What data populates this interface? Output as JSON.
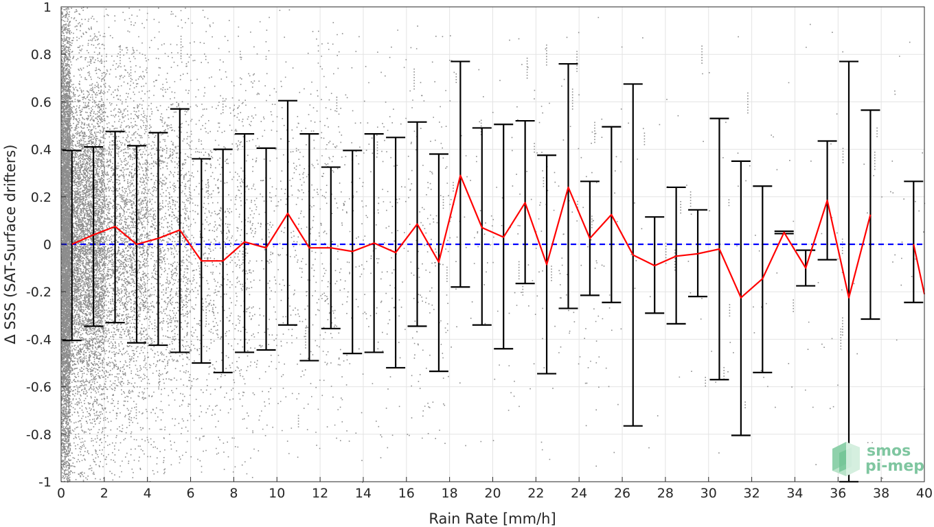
{
  "chart_data": {
    "type": "scatter",
    "xlabel": "Rain Rate [mm/h]",
    "ylabel": "Δ SSS (SAT-Surface drifters)",
    "xlim": [
      0,
      40
    ],
    "ylim": [
      -1,
      1
    ],
    "x_ticks": [
      "0",
      "2",
      "4",
      "6",
      "8",
      "10",
      "12",
      "14",
      "16",
      "18",
      "20",
      "22",
      "24",
      "26",
      "28",
      "30",
      "32",
      "34",
      "36",
      "38",
      "40"
    ],
    "y_ticks": [
      "-1",
      "-0.8",
      "-0.6",
      "-0.4",
      "-0.2",
      "0",
      "0.2",
      "0.4",
      "0.6",
      "0.8",
      "1"
    ],
    "grid": true,
    "scatter_color": "#8c8c8c",
    "mean_color": "#ff0000",
    "errorbar_color": "#000000",
    "zero_line_color": "#0000ff",
    "zero_line_style": "dashed",
    "mean_series": {
      "x": [
        0.5,
        1.5,
        2.5,
        3.5,
        4.5,
        5.5,
        6.5,
        7.5,
        8.5,
        9.5,
        10.5,
        11.5,
        12.5,
        13.5,
        14.5,
        15.5,
        16.5,
        17.5,
        18.5,
        19.5,
        20.5,
        21.5,
        22.5,
        23.5,
        24.5,
        25.5,
        26.5,
        27.5,
        28.5,
        29.5,
        30.5,
        31.5,
        32.5,
        33.5,
        34.5,
        35.5,
        36.5,
        37.5,
        38.5,
        39.5,
        40
      ],
      "y": [
        0.0,
        0.04,
        0.075,
        0.0,
        0.025,
        0.06,
        -0.07,
        -0.07,
        0.01,
        -0.015,
        0.13,
        -0.015,
        -0.015,
        -0.03,
        0.005,
        -0.035,
        0.085,
        -0.075,
        0.29,
        0.07,
        0.03,
        0.175,
        -0.085,
        0.24,
        0.025,
        0.125,
        -0.045,
        -0.09,
        -0.05,
        -0.04,
        -0.02,
        -0.225,
        -0.145,
        0.05,
        -0.1,
        0.185,
        -0.225,
        0.125,
        null,
        0.0,
        -0.21
      ]
    },
    "error_bars": [
      {
        "x": 0.5,
        "low": -0.405,
        "high": 0.395
      },
      {
        "x": 1.5,
        "low": -0.345,
        "high": 0.41
      },
      {
        "x": 2.5,
        "low": -0.33,
        "high": 0.475
      },
      {
        "x": 3.5,
        "low": -0.415,
        "high": 0.415
      },
      {
        "x": 4.5,
        "low": -0.425,
        "high": 0.47
      },
      {
        "x": 5.5,
        "low": -0.455,
        "high": 0.57
      },
      {
        "x": 6.5,
        "low": -0.5,
        "high": 0.36
      },
      {
        "x": 7.5,
        "low": -0.54,
        "high": 0.4
      },
      {
        "x": 8.5,
        "low": -0.455,
        "high": 0.465
      },
      {
        "x": 9.5,
        "low": -0.445,
        "high": 0.405
      },
      {
        "x": 10.5,
        "low": -0.34,
        "high": 0.605
      },
      {
        "x": 11.5,
        "low": -0.49,
        "high": 0.465
      },
      {
        "x": 12.5,
        "low": -0.355,
        "high": 0.325
      },
      {
        "x": 13.5,
        "low": -0.46,
        "high": 0.395
      },
      {
        "x": 14.5,
        "low": -0.455,
        "high": 0.465
      },
      {
        "x": 15.5,
        "low": -0.52,
        "high": 0.45
      },
      {
        "x": 16.5,
        "low": -0.345,
        "high": 0.515
      },
      {
        "x": 17.5,
        "low": -0.535,
        "high": 0.38
      },
      {
        "x": 18.5,
        "low": -0.18,
        "high": 0.77
      },
      {
        "x": 19.5,
        "low": -0.34,
        "high": 0.49
      },
      {
        "x": 20.5,
        "low": -0.44,
        "high": 0.505
      },
      {
        "x": 21.5,
        "low": -0.165,
        "high": 0.52
      },
      {
        "x": 22.5,
        "low": -0.545,
        "high": 0.375
      },
      {
        "x": 23.5,
        "low": -0.27,
        "high": 0.76
      },
      {
        "x": 24.5,
        "low": -0.215,
        "high": 0.265
      },
      {
        "x": 25.5,
        "low": -0.245,
        "high": 0.495
      },
      {
        "x": 26.5,
        "low": -0.765,
        "high": 0.675
      },
      {
        "x": 27.5,
        "low": -0.29,
        "high": 0.115
      },
      {
        "x": 28.5,
        "low": -0.335,
        "high": 0.24
      },
      {
        "x": 29.5,
        "low": -0.22,
        "high": 0.145
      },
      {
        "x": 30.5,
        "low": -0.57,
        "high": 0.53
      },
      {
        "x": 31.5,
        "low": -0.805,
        "high": 0.35
      },
      {
        "x": 32.5,
        "low": -0.54,
        "high": 0.245
      },
      {
        "x": 33.5,
        "low": 0.045,
        "high": 0.055
      },
      {
        "x": 34.5,
        "low": -0.175,
        "high": -0.025
      },
      {
        "x": 35.5,
        "low": -0.065,
        "high": 0.435
      },
      {
        "x": 36.5,
        "low": -1.0,
        "high": 0.77
      },
      {
        "x": 37.5,
        "low": -0.315,
        "high": 0.565
      },
      {
        "x": 39.5,
        "low": -0.245,
        "high": 0.265
      }
    ]
  },
  "logo": {
    "line1": "smos",
    "line2": "pi-mep"
  }
}
